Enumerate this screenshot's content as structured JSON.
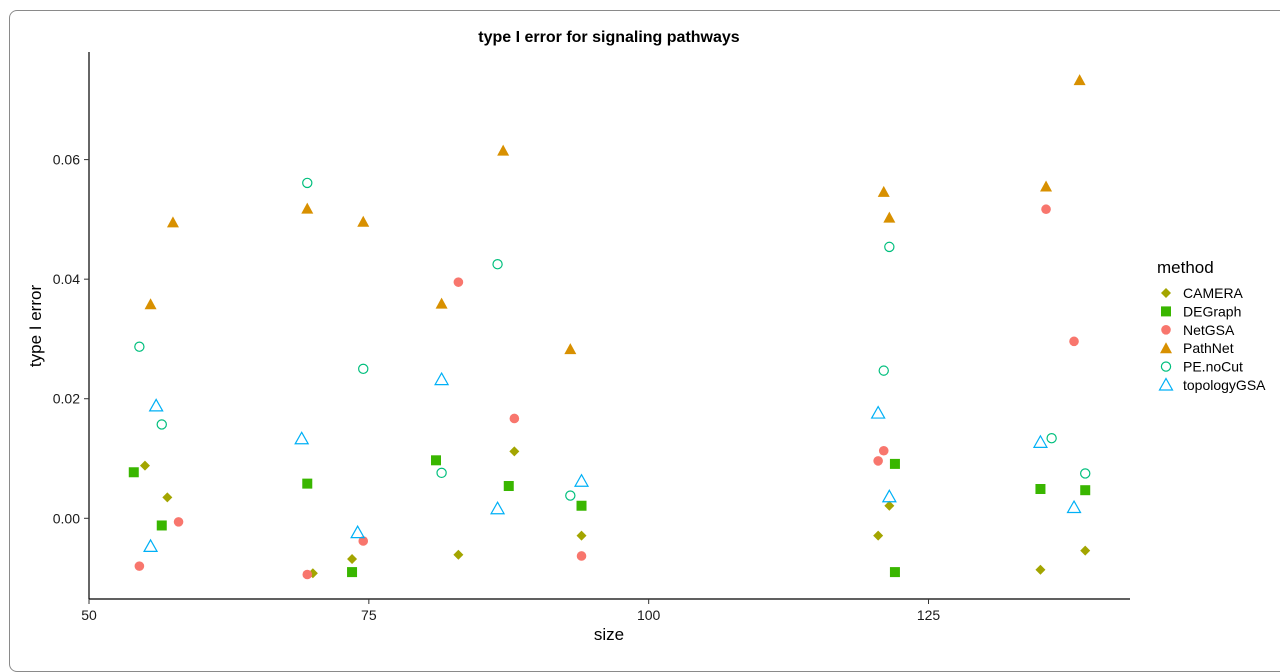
{
  "chart_data": {
    "type": "scatter",
    "title": "type I error for signaling pathways",
    "xlabel": "size",
    "ylabel": "type I error",
    "xlim": [
      50,
      143
    ],
    "ylim": [
      -0.0135,
      0.078
    ],
    "xticks": [
      "50",
      "75",
      "100",
      "125"
    ],
    "yticks": [
      "0.00",
      "0.02",
      "0.04",
      "0.06"
    ],
    "grid": false,
    "legend": {
      "title": "method",
      "position": "right"
    },
    "series": [
      {
        "name": "CAMERA",
        "marker": "diamond",
        "color": "#A3A500",
        "points": [
          [
            55.0,
            0.0088
          ],
          [
            57.0,
            0.0035
          ],
          [
            70.0,
            -0.0092
          ],
          [
            73.5,
            -0.0068
          ],
          [
            83.0,
            -0.0061
          ],
          [
            88.0,
            0.0112
          ],
          [
            94.0,
            -0.0029
          ],
          [
            120.5,
            -0.0029
          ],
          [
            121.5,
            0.0021
          ],
          [
            135.0,
            -0.0086
          ],
          [
            139.0,
            -0.0054
          ]
        ]
      },
      {
        "name": "DEGraph",
        "marker": "square",
        "color": "#39B600",
        "points": [
          [
            54.0,
            0.0077
          ],
          [
            56.5,
            -0.0012
          ],
          [
            69.5,
            0.0058
          ],
          [
            73.5,
            -0.009
          ],
          [
            81.0,
            0.0097
          ],
          [
            87.5,
            0.0054
          ],
          [
            94.0,
            0.0021
          ],
          [
            122.0,
            0.0091
          ],
          [
            122.0,
            -0.009
          ],
          [
            135.0,
            0.0049
          ],
          [
            139.0,
            0.0047
          ]
        ]
      },
      {
        "name": "NetGSA",
        "marker": "circle-filled",
        "color": "#F8766D",
        "points": [
          [
            54.5,
            -0.008
          ],
          [
            58.0,
            -0.0006
          ],
          [
            69.5,
            -0.0094
          ],
          [
            74.5,
            -0.0038
          ],
          [
            83.0,
            0.0395
          ],
          [
            88.0,
            0.0167
          ],
          [
            94.0,
            -0.0063
          ],
          [
            120.5,
            0.0096
          ],
          [
            121.0,
            0.0113
          ],
          [
            135.5,
            0.0517
          ],
          [
            138.0,
            0.0296
          ]
        ]
      },
      {
        "name": "PathNet",
        "marker": "triangle-filled",
        "color": "#D89000",
        "points": [
          [
            55.5,
            0.0358
          ],
          [
            57.5,
            0.0495
          ],
          [
            69.5,
            0.0518
          ],
          [
            74.5,
            0.0496
          ],
          [
            81.5,
            0.0359
          ],
          [
            87.0,
            0.0615
          ],
          [
            93.0,
            0.0283
          ],
          [
            121.0,
            0.0546
          ],
          [
            121.5,
            0.0503
          ],
          [
            135.5,
            0.0555
          ],
          [
            138.5,
            0.0733
          ]
        ]
      },
      {
        "name": "PE.noCut",
        "marker": "circle-open",
        "color": "#00BF7D",
        "points": [
          [
            54.5,
            0.0287
          ],
          [
            56.5,
            0.0157
          ],
          [
            69.5,
            0.0561
          ],
          [
            74.5,
            0.025
          ],
          [
            81.5,
            0.0076
          ],
          [
            86.5,
            0.0425
          ],
          [
            93.0,
            0.0038
          ],
          [
            121.0,
            0.0247
          ],
          [
            121.5,
            0.0454
          ],
          [
            136.0,
            0.0134
          ],
          [
            139.0,
            0.0075
          ]
        ]
      },
      {
        "name": "topologyGSA",
        "marker": "triangle-open",
        "color": "#00B0F6",
        "points": [
          [
            56.0,
            0.0188
          ],
          [
            55.5,
            -0.0047
          ],
          [
            69.0,
            0.0133
          ],
          [
            74.0,
            -0.0024
          ],
          [
            81.5,
            0.0232
          ],
          [
            86.5,
            0.0016
          ],
          [
            94.0,
            0.0062
          ],
          [
            120.5,
            0.0176
          ],
          [
            121.5,
            0.0036
          ],
          [
            135.0,
            0.0127
          ],
          [
            138.0,
            0.0018
          ]
        ]
      }
    ]
  }
}
